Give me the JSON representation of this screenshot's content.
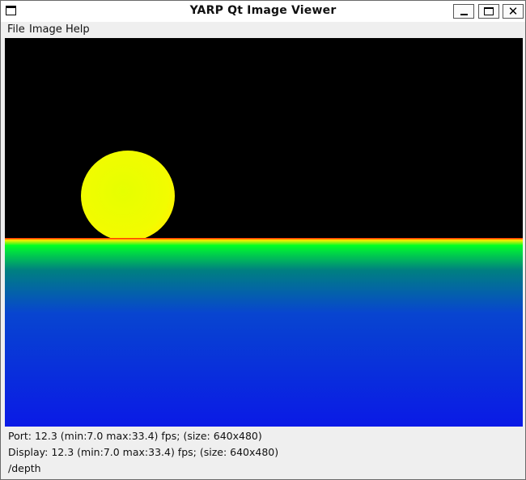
{
  "window": {
    "title": "YARP Qt Image Viewer",
    "controls": {
      "minimize": "minimize-button",
      "maximize": "maximize-button",
      "close_glyph": "✕"
    }
  },
  "menu": {
    "items": [
      {
        "label": "File"
      },
      {
        "label": "Image"
      },
      {
        "label": "Help"
      }
    ]
  },
  "image": {
    "type": "depth-colormap",
    "colors": {
      "background": "#000000",
      "sphere": "#eeff00",
      "horizon_red": "#ff1a00",
      "horizon_yellow": "#ffee00",
      "ground_green": "#00ff22",
      "ground_teal": "#008080",
      "ground_blue": "#0a1ae6"
    }
  },
  "status": {
    "port": "Port: 12.3 (min:7.0 max:33.4) fps; (size: 640x480)",
    "display": "Display: 12.3 (min:7.0 max:33.4) fps; (size: 640x480)",
    "portname": "/depth"
  }
}
